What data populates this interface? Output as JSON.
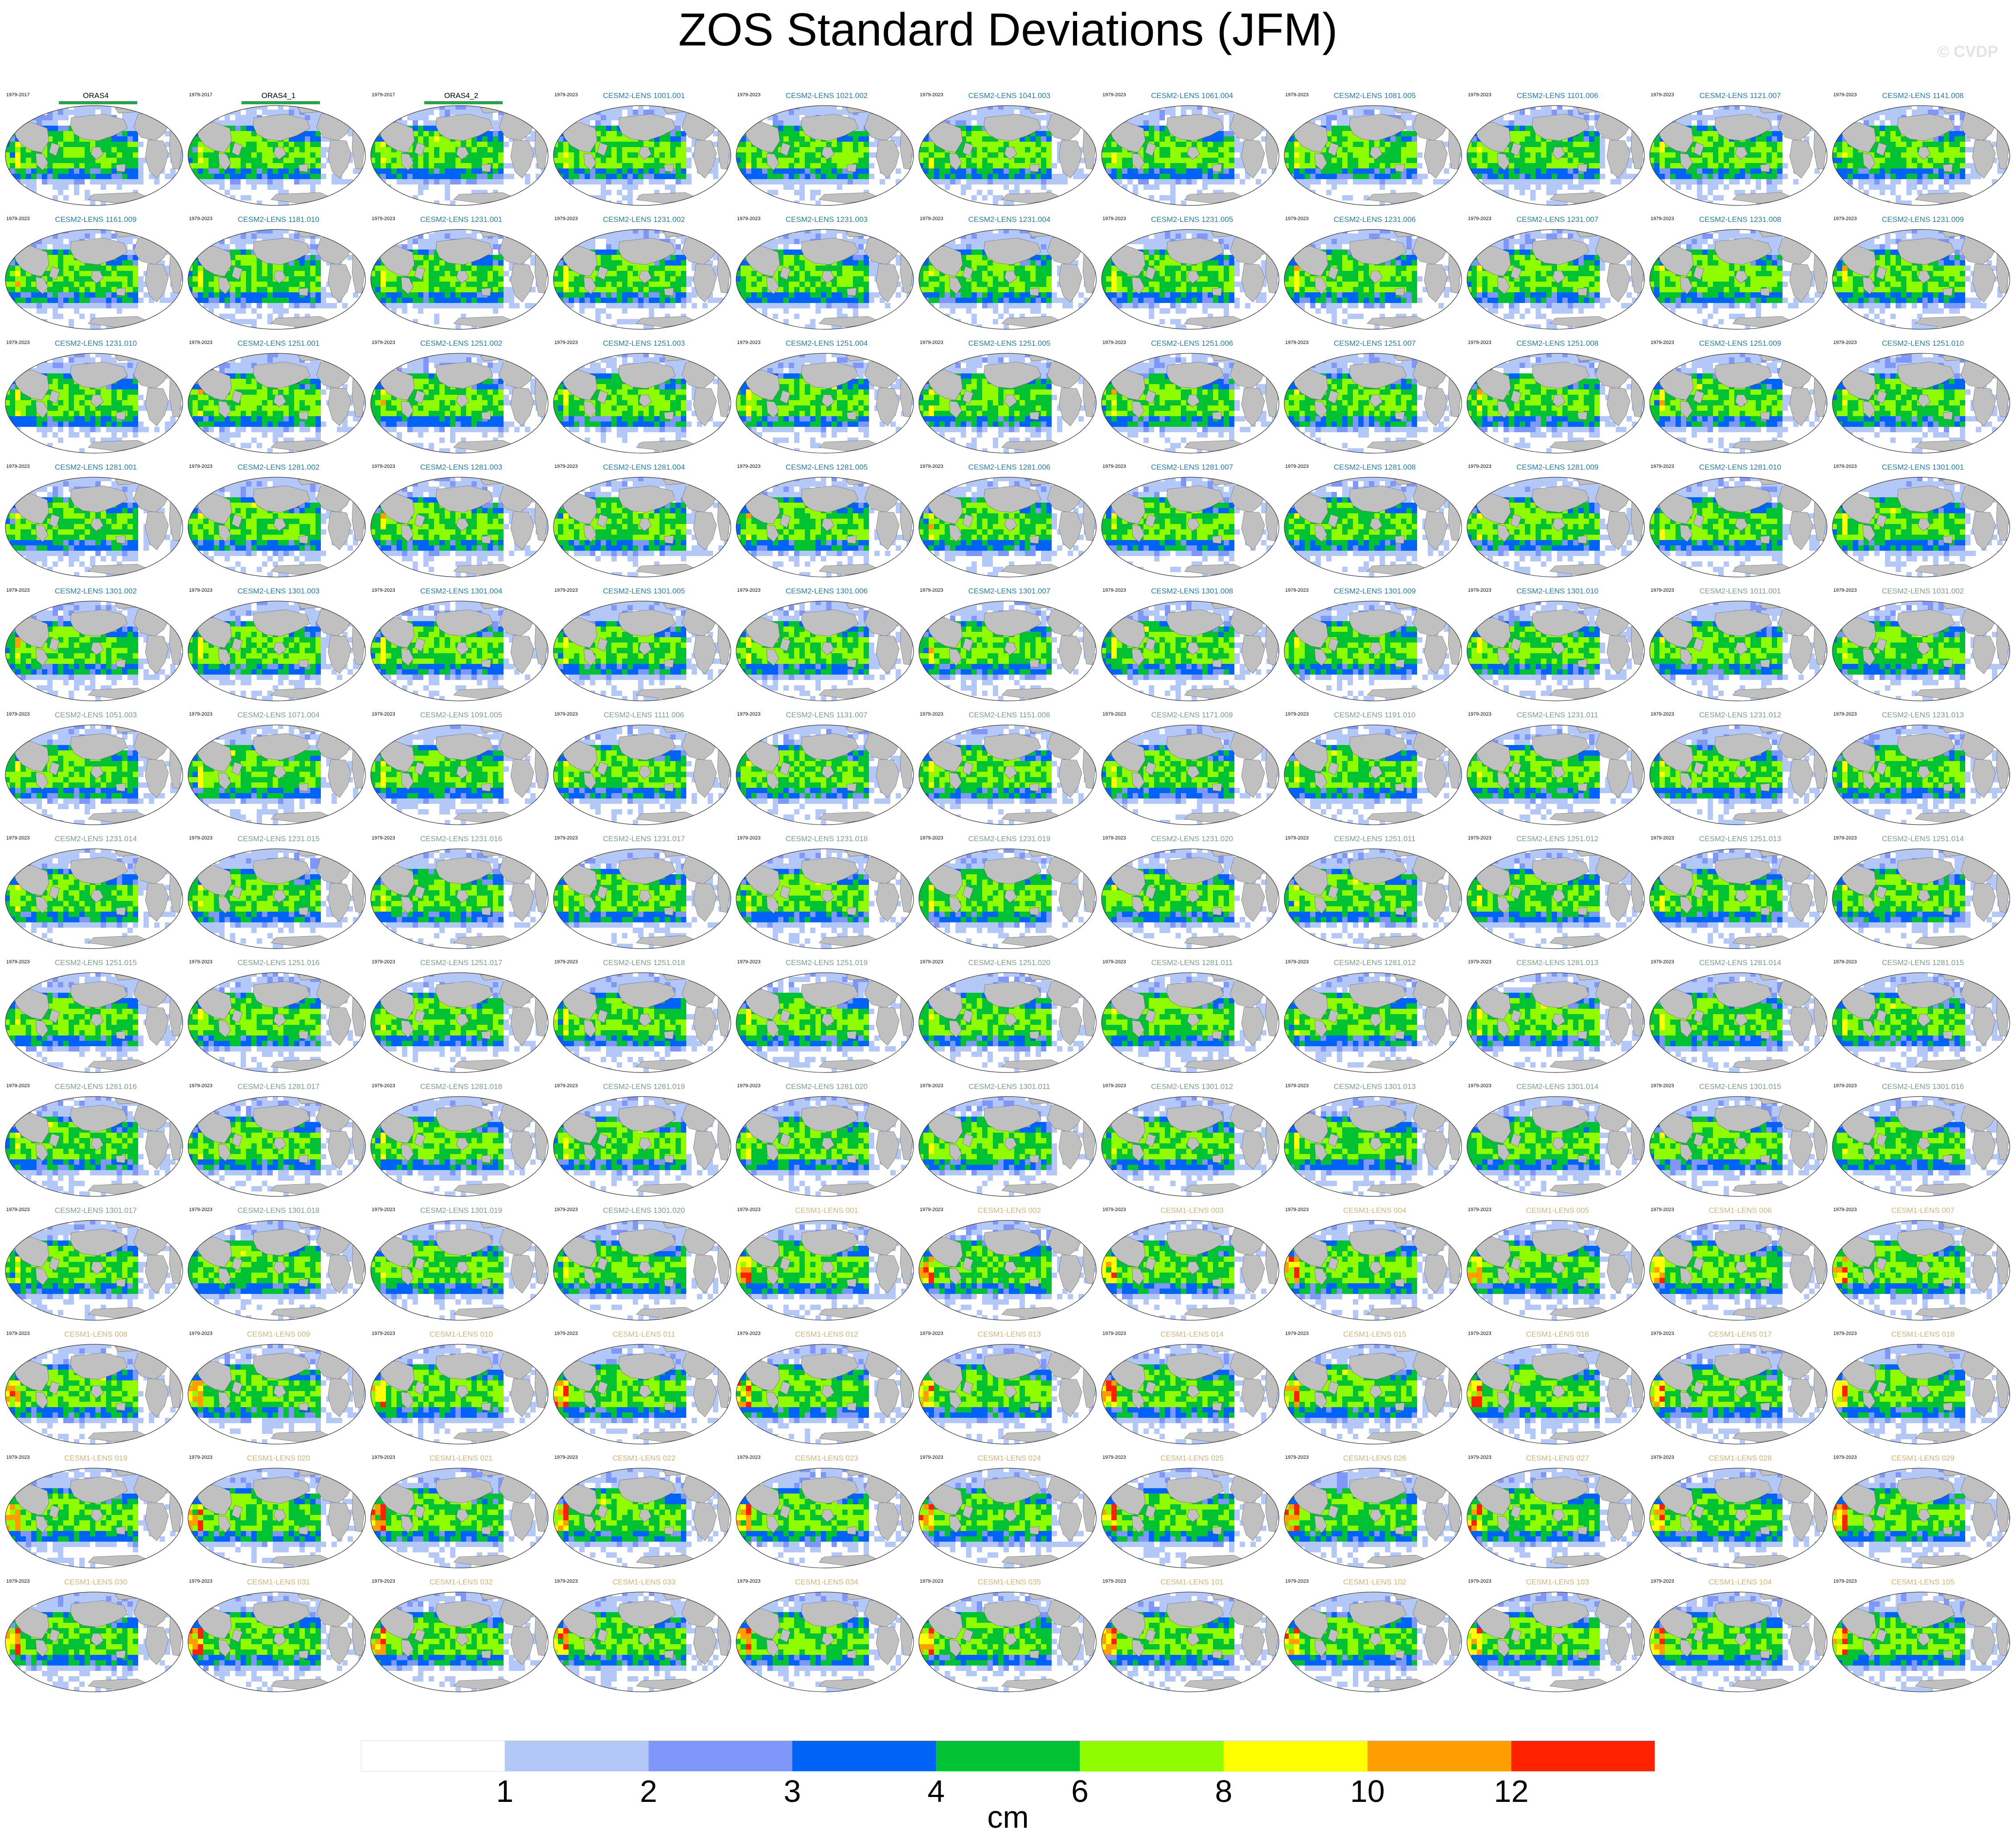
{
  "chart_data": {
    "type": "heatmap",
    "title": "ZOS Standard Deviations (JFM)",
    "watermark": "© CVDP",
    "layout": "panel grid, 11 columns x 13 rows of global maps",
    "colorbar": {
      "unit": "cm",
      "levels": [
        1,
        2,
        3,
        4,
        6,
        8,
        10,
        12
      ],
      "colors": [
        "#ffffff",
        "#b4c8f8",
        "#7e97f8",
        "#0063f7",
        "#00c232",
        "#8ffc00",
        "#ffff00",
        "#ff9e00",
        "#ff2200"
      ]
    },
    "panels": [
      {
        "name": "ORAS4",
        "years": "1979-2017",
        "group": "obs"
      },
      {
        "name": "ORAS4_1",
        "years": "1979-2017",
        "group": "obs"
      },
      {
        "name": "ORAS4_2",
        "years": "1979-2017",
        "group": "obs"
      },
      {
        "name": "CESM2-LENS 1001.001",
        "years": "1979-2023",
        "group": "c2"
      },
      {
        "name": "CESM2-LENS 1021.002",
        "years": "1979-2023",
        "group": "c2"
      },
      {
        "name": "CESM2-LENS 1041.003",
        "years": "1979-2023",
        "group": "c2"
      },
      {
        "name": "CESM2-LENS 1061.004",
        "years": "1979-2023",
        "group": "c2"
      },
      {
        "name": "CESM2-LENS 1081.005",
        "years": "1979-2023",
        "group": "c2"
      },
      {
        "name": "CESM2-LENS 1101.006",
        "years": "1979-2023",
        "group": "c2"
      },
      {
        "name": "CESM2-LENS 1121.007",
        "years": "1979-2023",
        "group": "c2"
      },
      {
        "name": "CESM2-LENS 1141.008",
        "years": "1979-2023",
        "group": "c2"
      },
      {
        "name": "CESM2-LENS 1161.009",
        "years": "1979-2023",
        "group": "c2"
      },
      {
        "name": "CESM2-LENS 1181.010",
        "years": "1979-2023",
        "group": "c2"
      },
      {
        "name": "CESM2-LENS 1231.001",
        "years": "1979-2023",
        "group": "c2"
      },
      {
        "name": "CESM2-LENS 1231.002",
        "years": "1979-2023",
        "group": "c2"
      },
      {
        "name": "CESM2-LENS 1231.003",
        "years": "1979-2023",
        "group": "c2"
      },
      {
        "name": "CESM2-LENS 1231.004",
        "years": "1979-2023",
        "group": "c2"
      },
      {
        "name": "CESM2-LENS 1231.005",
        "years": "1979-2023",
        "group": "c2"
      },
      {
        "name": "CESM2-LENS 1231.006",
        "years": "1979-2023",
        "group": "c2"
      },
      {
        "name": "CESM2-LENS 1231.007",
        "years": "1979-2023",
        "group": "c2"
      },
      {
        "name": "CESM2-LENS 1231.008",
        "years": "1979-2023",
        "group": "c2"
      },
      {
        "name": "CESM2-LENS 1231.009",
        "years": "1979-2023",
        "group": "c2"
      },
      {
        "name": "CESM2-LENS 1231.010",
        "years": "1979-2023",
        "group": "c2"
      },
      {
        "name": "CESM2-LENS 1251.001",
        "years": "1979-2023",
        "group": "c2"
      },
      {
        "name": "CESM2-LENS 1251.002",
        "years": "1979-2023",
        "group": "c2"
      },
      {
        "name": "CESM2-LENS 1251.003",
        "years": "1979-2023",
        "group": "c2"
      },
      {
        "name": "CESM2-LENS 1251.004",
        "years": "1979-2023",
        "group": "c2"
      },
      {
        "name": "CESM2-LENS 1251.005",
        "years": "1979-2023",
        "group": "c2"
      },
      {
        "name": "CESM2-LENS 1251.006",
        "years": "1979-2023",
        "group": "c2"
      },
      {
        "name": "CESM2-LENS 1251.007",
        "years": "1979-2023",
        "group": "c2"
      },
      {
        "name": "CESM2-LENS 1251.008",
        "years": "1979-2023",
        "group": "c2"
      },
      {
        "name": "CESM2-LENS 1251.009",
        "years": "1979-2023",
        "group": "c2"
      },
      {
        "name": "CESM2-LENS 1251.010",
        "years": "1979-2023",
        "group": "c2"
      },
      {
        "name": "CESM2-LENS 1281.001",
        "years": "1979-2023",
        "group": "c2"
      },
      {
        "name": "CESM2-LENS 1281.002",
        "years": "1979-2023",
        "group": "c2"
      },
      {
        "name": "CESM2-LENS 1281.003",
        "years": "1979-2023",
        "group": "c2"
      },
      {
        "name": "CESM2-LENS 1281.004",
        "years": "1979-2023",
        "group": "c2"
      },
      {
        "name": "CESM2-LENS 1281.005",
        "years": "1979-2023",
        "group": "c2"
      },
      {
        "name": "CESM2-LENS 1281.006",
        "years": "1979-2023",
        "group": "c2"
      },
      {
        "name": "CESM2-LENS 1281.007",
        "years": "1979-2023",
        "group": "c2"
      },
      {
        "name": "CESM2-LENS 1281.008",
        "years": "1979-2023",
        "group": "c2"
      },
      {
        "name": "CESM2-LENS 1281.009",
        "years": "1979-2023",
        "group": "c2"
      },
      {
        "name": "CESM2-LENS 1281.010",
        "years": "1979-2023",
        "group": "c2"
      },
      {
        "name": "CESM2-LENS 1301.001",
        "years": "1979-2023",
        "group": "c2"
      },
      {
        "name": "CESM2-LENS 1301.002",
        "years": "1979-2023",
        "group": "c2"
      },
      {
        "name": "CESM2-LENS 1301.003",
        "years": "1979-2023",
        "group": "c2"
      },
      {
        "name": "CESM2-LENS 1301.004",
        "years": "1979-2023",
        "group": "c2"
      },
      {
        "name": "CESM2-LENS 1301.005",
        "years": "1979-2023",
        "group": "c2"
      },
      {
        "name": "CESM2-LENS 1301.006",
        "years": "1979-2023",
        "group": "c2"
      },
      {
        "name": "CESM2-LENS 1301.007",
        "years": "1979-2023",
        "group": "c2"
      },
      {
        "name": "CESM2-LENS 1301.008",
        "years": "1979-2023",
        "group": "c2"
      },
      {
        "name": "CESM2-LENS 1301.009",
        "years": "1979-2023",
        "group": "c2"
      },
      {
        "name": "CESM2-LENS 1301.010",
        "years": "1979-2023",
        "group": "c2"
      },
      {
        "name": "CESM2-LENS 1011.001",
        "years": "1979-2023",
        "group": "c2b"
      },
      {
        "name": "CESM2-LENS 1031.002",
        "years": "1979-2023",
        "group": "c2b"
      },
      {
        "name": "CESM2-LENS 1051.003",
        "years": "1979-2023",
        "group": "c2b"
      },
      {
        "name": "CESM2-LENS 1071.004",
        "years": "1979-2023",
        "group": "c2b"
      },
      {
        "name": "CESM2-LENS 1091.005",
        "years": "1979-2023",
        "group": "c2b"
      },
      {
        "name": "CESM2-LENS 1111.006",
        "years": "1979-2023",
        "group": "c2b"
      },
      {
        "name": "CESM2-LENS 1131.007",
        "years": "1979-2023",
        "group": "c2b"
      },
      {
        "name": "CESM2-LENS 1151.008",
        "years": "1979-2023",
        "group": "c2b"
      },
      {
        "name": "CESM2-LENS 1171.009",
        "years": "1979-2023",
        "group": "c2b"
      },
      {
        "name": "CESM2-LENS 1191.010",
        "years": "1979-2023",
        "group": "c2b"
      },
      {
        "name": "CESM2-LENS 1231.011",
        "years": "1979-2023",
        "group": "c2b"
      },
      {
        "name": "CESM2-LENS 1231.012",
        "years": "1979-2023",
        "group": "c2b"
      },
      {
        "name": "CESM2-LENS 1231.013",
        "years": "1979-2023",
        "group": "c2b"
      },
      {
        "name": "CESM2-LENS 1231.014",
        "years": "1979-2023",
        "group": "c2b"
      },
      {
        "name": "CESM2-LENS 1231.015",
        "years": "1979-2023",
        "group": "c2b"
      },
      {
        "name": "CESM2-LENS 1231.016",
        "years": "1979-2023",
        "group": "c2b"
      },
      {
        "name": "CESM2-LENS 1231.017",
        "years": "1979-2023",
        "group": "c2b"
      },
      {
        "name": "CESM2-LENS 1231.018",
        "years": "1979-2023",
        "group": "c2b"
      },
      {
        "name": "CESM2-LENS 1231.019",
        "years": "1979-2023",
        "group": "c2b"
      },
      {
        "name": "CESM2-LENS 1231.020",
        "years": "1979-2023",
        "group": "c2b"
      },
      {
        "name": "CESM2-LENS 1251.011",
        "years": "1979-2023",
        "group": "c2b"
      },
      {
        "name": "CESM2-LENS 1251.012",
        "years": "1979-2023",
        "group": "c2b"
      },
      {
        "name": "CESM2-LENS 1251.013",
        "years": "1979-2023",
        "group": "c2b"
      },
      {
        "name": "CESM2-LENS 1251.014",
        "years": "1979-2023",
        "group": "c2b"
      },
      {
        "name": "CESM2-LENS 1251.015",
        "years": "1979-2023",
        "group": "c2b"
      },
      {
        "name": "CESM2-LENS 1251.016",
        "years": "1979-2023",
        "group": "c2b"
      },
      {
        "name": "CESM2-LENS 1251.017",
        "years": "1979-2023",
        "group": "c2b"
      },
      {
        "name": "CESM2-LENS 1251.018",
        "years": "1979-2023",
        "group": "c2b"
      },
      {
        "name": "CESM2-LENS 1251.019",
        "years": "1979-2023",
        "group": "c2b"
      },
      {
        "name": "CESM2-LENS 1251.020",
        "years": "1979-2023",
        "group": "c2b"
      },
      {
        "name": "CESM2-LENS 1281.011",
        "years": "1979-2023",
        "group": "c2b"
      },
      {
        "name": "CESM2-LENS 1281.012",
        "years": "1979-2023",
        "group": "c2b"
      },
      {
        "name": "CESM2-LENS 1281.013",
        "years": "1979-2023",
        "group": "c2b"
      },
      {
        "name": "CESM2-LENS 1281.014",
        "years": "1979-2023",
        "group": "c2b"
      },
      {
        "name": "CESM2-LENS 1281.015",
        "years": "1979-2023",
        "group": "c2b"
      },
      {
        "name": "CESM2-LENS 1281.016",
        "years": "1979-2023",
        "group": "c2b"
      },
      {
        "name": "CESM2-LENS 1281.017",
        "years": "1979-2023",
        "group": "c2b"
      },
      {
        "name": "CESM2-LENS 1281.018",
        "years": "1979-2023",
        "group": "c2b"
      },
      {
        "name": "CESM2-LENS 1281.019",
        "years": "1979-2023",
        "group": "c2b"
      },
      {
        "name": "CESM2-LENS 1281.020",
        "years": "1979-2023",
        "group": "c2b"
      },
      {
        "name": "CESM2-LENS 1301.011",
        "years": "1979-2023",
        "group": "c2b"
      },
      {
        "name": "CESM2-LENS 1301.012",
        "years": "1979-2023",
        "group": "c2b"
      },
      {
        "name": "CESM2-LENS 1301.013",
        "years": "1979-2023",
        "group": "c2b"
      },
      {
        "name": "CESM2-LENS 1301.014",
        "years": "1979-2023",
        "group": "c2b"
      },
      {
        "name": "CESM2-LENS 1301.015",
        "years": "1979-2023",
        "group": "c2b"
      },
      {
        "name": "CESM2-LENS 1301.016",
        "years": "1979-2023",
        "group": "c2b"
      },
      {
        "name": "CESM2-LENS 1301.017",
        "years": "1979-2023",
        "group": "c2b"
      },
      {
        "name": "CESM2-LENS 1301.018",
        "years": "1979-2023",
        "group": "c2b"
      },
      {
        "name": "CESM2-LENS 1301.019",
        "years": "1979-2023",
        "group": "c2b"
      },
      {
        "name": "CESM2-LENS 1301.020",
        "years": "1979-2023",
        "group": "c2b"
      },
      {
        "name": "CESM1-LENS 001",
        "years": "1979-2023",
        "group": "c1"
      },
      {
        "name": "CESM1-LENS 002",
        "years": "1979-2023",
        "group": "c1"
      },
      {
        "name": "CESM1-LENS 003",
        "years": "1979-2023",
        "group": "c1"
      },
      {
        "name": "CESM1-LENS 004",
        "years": "1979-2023",
        "group": "c1"
      },
      {
        "name": "CESM1-LENS 005",
        "years": "1979-2023",
        "group": "c1"
      },
      {
        "name": "CESM1-LENS 006",
        "years": "1979-2023",
        "group": "c1"
      },
      {
        "name": "CESM1-LENS 007",
        "years": "1979-2023",
        "group": "c1"
      },
      {
        "name": "CESM1-LENS 008",
        "years": "1979-2023",
        "group": "c1"
      },
      {
        "name": "CESM1-LENS 009",
        "years": "1979-2023",
        "group": "c1"
      },
      {
        "name": "CESM1-LENS 010",
        "years": "1979-2023",
        "group": "c1"
      },
      {
        "name": "CESM1-LENS 011",
        "years": "1979-2023",
        "group": "c1"
      },
      {
        "name": "CESM1-LENS 012",
        "years": "1979-2023",
        "group": "c1"
      },
      {
        "name": "CESM1-LENS 013",
        "years": "1979-2023",
        "group": "c1"
      },
      {
        "name": "CESM1-LENS 014",
        "years": "1979-2023",
        "group": "c1"
      },
      {
        "name": "CESM1-LENS 015",
        "years": "1979-2023",
        "group": "c1"
      },
      {
        "name": "CESM1-LENS 016",
        "years": "1979-2023",
        "group": "c1"
      },
      {
        "name": "CESM1-LENS 017",
        "years": "1979-2023",
        "group": "c1"
      },
      {
        "name": "CESM1-LENS 018",
        "years": "1979-2023",
        "group": "c1"
      },
      {
        "name": "CESM1-LENS 019",
        "years": "1979-2023",
        "group": "c1"
      },
      {
        "name": "CESM1-LENS 020",
        "years": "1979-2023",
        "group": "c1"
      },
      {
        "name": "CESM1-LENS 021",
        "years": "1979-2023",
        "group": "c1"
      },
      {
        "name": "CESM1-LENS 022",
        "years": "1979-2023",
        "group": "c1"
      },
      {
        "name": "CESM1-LENS 023",
        "years": "1979-2023",
        "group": "c1"
      },
      {
        "name": "CESM1-LENS 024",
        "years": "1979-2023",
        "group": "c1"
      },
      {
        "name": "CESM1-LENS 025",
        "years": "1979-2023",
        "group": "c1"
      },
      {
        "name": "CESM1-LENS 026",
        "years": "1979-2023",
        "group": "c1"
      },
      {
        "name": "CESM1-LENS 027",
        "years": "1979-2023",
        "group": "c1"
      },
      {
        "name": "CESM1-LENS 028",
        "years": "1979-2023",
        "group": "c1"
      },
      {
        "name": "CESM1-LENS 029",
        "years": "1979-2023",
        "group": "c1"
      },
      {
        "name": "CESM1-LENS 030",
        "years": "1979-2023",
        "group": "c1"
      },
      {
        "name": "CESM1-LENS 031",
        "years": "1979-2023",
        "group": "c1"
      },
      {
        "name": "CESM1-LENS 032",
        "years": "1979-2023",
        "group": "c1"
      },
      {
        "name": "CESM1-LENS 033",
        "years": "1979-2023",
        "group": "c1"
      },
      {
        "name": "CESM1-LENS 034",
        "years": "1979-2023",
        "group": "c1"
      },
      {
        "name": "CESM1-LENS 035",
        "years": "1979-2023",
        "group": "c1"
      },
      {
        "name": "CESM1-LENS 101",
        "years": "1979-2023",
        "group": "c1"
      },
      {
        "name": "CESM1-LENS 102",
        "years": "1979-2023",
        "group": "c1"
      },
      {
        "name": "CESM1-LENS 103",
        "years": "1979-2023",
        "group": "c1"
      },
      {
        "name": "CESM1-LENS 104",
        "years": "1979-2023",
        "group": "c1"
      },
      {
        "name": "CESM1-LENS 105",
        "years": "1979-2023",
        "group": "c1"
      }
    ]
  }
}
